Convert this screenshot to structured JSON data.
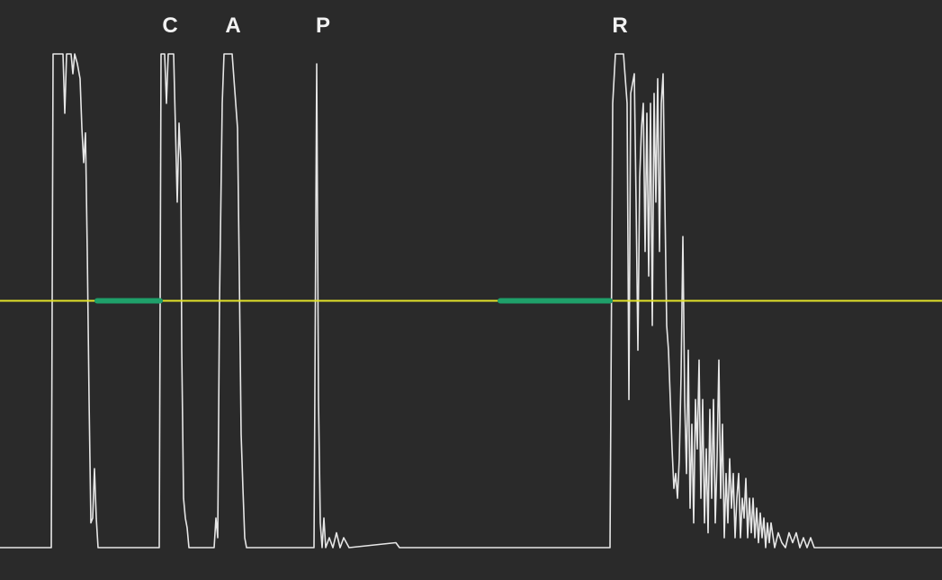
{
  "chart_data": {
    "type": "line",
    "title": "",
    "xlabel": "",
    "ylabel": "",
    "grid": false,
    "xlim": [
      0,
      1047
    ],
    "ylim": [
      0,
      1
    ],
    "colors": {
      "background": "#2a2a2a",
      "signal": "#e6e6e6",
      "threshold": "#e3e32a",
      "below_threshold_segments": "#1fa06a"
    },
    "threshold": 0.5,
    "peak_labels": [
      {
        "text": "C",
        "x": 189
      },
      {
        "text": "A",
        "x": 259
      },
      {
        "text": "P",
        "x": 359
      },
      {
        "text": "R",
        "x": 689
      }
    ],
    "below_threshold_segments": [
      [
        108,
        178
      ],
      [
        556,
        678
      ]
    ],
    "series": [
      {
        "values": [
          [
            0,
            0.0
          ],
          [
            57,
            0.0
          ],
          [
            59,
            1.0
          ],
          [
            70,
            1.0
          ],
          [
            72,
            0.88
          ],
          [
            74,
            1.0
          ],
          [
            79,
            1.0
          ],
          [
            81,
            0.96
          ],
          [
            83,
            1.0
          ],
          [
            86,
            0.98
          ],
          [
            89,
            0.95
          ],
          [
            91,
            0.85
          ],
          [
            93,
            0.78
          ],
          [
            95,
            0.84
          ],
          [
            97,
            0.6
          ],
          [
            99,
            0.3
          ],
          [
            101,
            0.05
          ],
          [
            103,
            0.06
          ],
          [
            105,
            0.16
          ],
          [
            107,
            0.06
          ],
          [
            109,
            0.0
          ],
          [
            177,
            0.0
          ],
          [
            179,
            1.0
          ],
          [
            183,
            1.0
          ],
          [
            185,
            0.9
          ],
          [
            187,
            1.0
          ],
          [
            193,
            1.0
          ],
          [
            195,
            0.85
          ],
          [
            197,
            0.7
          ],
          [
            199,
            0.86
          ],
          [
            201,
            0.78
          ],
          [
            202,
            0.4
          ],
          [
            204,
            0.1
          ],
          [
            206,
            0.06
          ],
          [
            208,
            0.04
          ],
          [
            210,
            0.0
          ],
          [
            238,
            0.0
          ],
          [
            240,
            0.06
          ],
          [
            242,
            0.02
          ],
          [
            244,
            0.5
          ],
          [
            247,
            0.9
          ],
          [
            249,
            1.0
          ],
          [
            258,
            1.0
          ],
          [
            260,
            0.95
          ],
          [
            262,
            0.9
          ],
          [
            264,
            0.85
          ],
          [
            266,
            0.55
          ],
          [
            268,
            0.23
          ],
          [
            270,
            0.12
          ],
          [
            272,
            0.02
          ],
          [
            274,
            0.0
          ],
          [
            349,
            0.0
          ],
          [
            352,
            0.98
          ],
          [
            354,
            0.3
          ],
          [
            356,
            0.05
          ],
          [
            358,
            0.0
          ],
          [
            360,
            0.06
          ],
          [
            362,
            0.0
          ],
          [
            366,
            0.02
          ],
          [
            370,
            0.0
          ],
          [
            374,
            0.03
          ],
          [
            378,
            0.0
          ],
          [
            382,
            0.02
          ],
          [
            388,
            0.0
          ],
          [
            440,
            0.01
          ],
          [
            444,
            0.0
          ],
          [
            678,
            0.0
          ],
          [
            681,
            0.9
          ],
          [
            684,
            1.0
          ],
          [
            693,
            1.0
          ],
          [
            697,
            0.9
          ],
          [
            699,
            0.3
          ],
          [
            701,
            0.92
          ],
          [
            705,
            0.96
          ],
          [
            707,
            0.7
          ],
          [
            709,
            0.4
          ],
          [
            711,
            0.75
          ],
          [
            713,
            0.85
          ],
          [
            715,
            0.9
          ],
          [
            717,
            0.6
          ],
          [
            719,
            0.88
          ],
          [
            721,
            0.55
          ],
          [
            723,
            0.9
          ],
          [
            725,
            0.45
          ],
          [
            727,
            0.92
          ],
          [
            729,
            0.7
          ],
          [
            731,
            0.95
          ],
          [
            733,
            0.6
          ],
          [
            735,
            0.9
          ],
          [
            737,
            0.96
          ],
          [
            739,
            0.7
          ],
          [
            741,
            0.45
          ],
          [
            743,
            0.4
          ],
          [
            745,
            0.3
          ],
          [
            747,
            0.2
          ],
          [
            749,
            0.12
          ],
          [
            751,
            0.15
          ],
          [
            753,
            0.1
          ],
          [
            755,
            0.18
          ],
          [
            757,
            0.35
          ],
          [
            759,
            0.63
          ],
          [
            761,
            0.3
          ],
          [
            763,
            0.15
          ],
          [
            765,
            0.4
          ],
          [
            767,
            0.08
          ],
          [
            769,
            0.25
          ],
          [
            771,
            0.05
          ],
          [
            773,
            0.3
          ],
          [
            775,
            0.2
          ],
          [
            777,
            0.38
          ],
          [
            779,
            0.1
          ],
          [
            781,
            0.3
          ],
          [
            783,
            0.05
          ],
          [
            785,
            0.2
          ],
          [
            787,
            0.03
          ],
          [
            789,
            0.28
          ],
          [
            791,
            0.1
          ],
          [
            793,
            0.3
          ],
          [
            795,
            0.05
          ],
          [
            797,
            0.18
          ],
          [
            799,
            0.38
          ],
          [
            801,
            0.1
          ],
          [
            803,
            0.25
          ],
          [
            805,
            0.02
          ],
          [
            807,
            0.15
          ],
          [
            809,
            0.05
          ],
          [
            811,
            0.18
          ],
          [
            813,
            0.08
          ],
          [
            815,
            0.15
          ],
          [
            817,
            0.02
          ],
          [
            819,
            0.1
          ],
          [
            821,
            0.15
          ],
          [
            823,
            0.02
          ],
          [
            825,
            0.1
          ],
          [
            827,
            0.06
          ],
          [
            829,
            0.14
          ],
          [
            831,
            0.02
          ],
          [
            833,
            0.1
          ],
          [
            835,
            0.03
          ],
          [
            837,
            0.1
          ],
          [
            839,
            0.02
          ],
          [
            841,
            0.08
          ],
          [
            843,
            0.01
          ],
          [
            845,
            0.07
          ],
          [
            847,
            0.02
          ],
          [
            849,
            0.06
          ],
          [
            851,
            0.0
          ],
          [
            853,
            0.05
          ],
          [
            855,
            0.01
          ],
          [
            857,
            0.05
          ],
          [
            861,
            0.0
          ],
          [
            865,
            0.03
          ],
          [
            869,
            0.01
          ],
          [
            873,
            0.0
          ],
          [
            877,
            0.03
          ],
          [
            881,
            0.01
          ],
          [
            885,
            0.03
          ],
          [
            889,
            0.0
          ],
          [
            893,
            0.02
          ],
          [
            897,
            0.0
          ],
          [
            901,
            0.02
          ],
          [
            905,
            0.0
          ],
          [
            1047,
            0.0
          ]
        ]
      }
    ]
  }
}
